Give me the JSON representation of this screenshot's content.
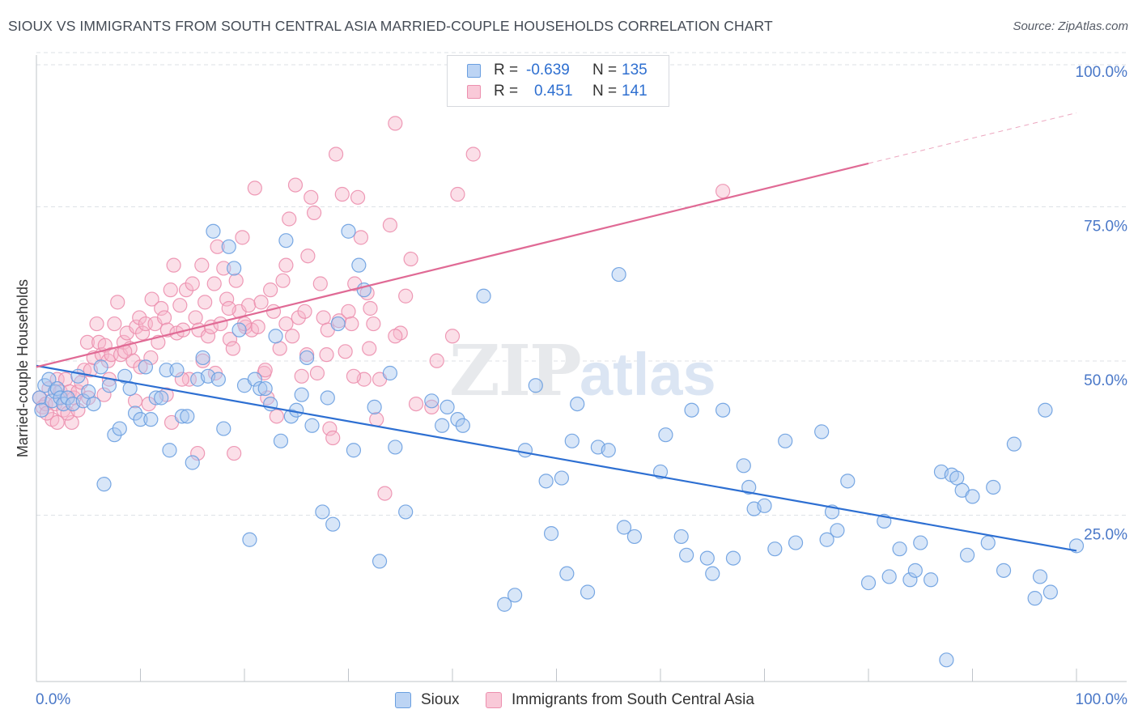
{
  "title": "SIOUX VS IMMIGRANTS FROM SOUTH CENTRAL ASIA MARRIED-COUPLE HOUSEHOLDS CORRELATION CHART",
  "source": "Source: ZipAtlas.com",
  "watermark": {
    "zip": "ZIP",
    "atlas": "atlas"
  },
  "legend": {
    "rows": [
      {
        "r_label": "R =",
        "r_value": "-0.639",
        "n_label": "N =",
        "n_value": "135"
      },
      {
        "r_label": "R =",
        "r_value": "0.451",
        "n_label": "N =",
        "n_value": "141"
      }
    ]
  },
  "bottom_legend": [
    "Sioux",
    "Immigrants from South Central Asia"
  ],
  "colors": {
    "blue_fill": "#a8c8f0",
    "blue_stroke": "#6a9fe0",
    "blue_line": "#2d6fd2",
    "pink_fill": "#f6b8cc",
    "pink_stroke": "#ec8fae",
    "pink_line": "#e06a95",
    "axis_text": "#4a78c8",
    "grid": "#dde1e6"
  },
  "chart_data": {
    "type": "scatter",
    "title": "SIOUX VS IMMIGRANTS FROM SOUTH CENTRAL ASIA MARRIED-COUPLE HOUSEHOLDS CORRELATION CHART",
    "xlabel": "",
    "ylabel": "Married-couple Households",
    "xlim": [
      0,
      100
    ],
    "ylim": [
      0,
      100
    ],
    "x_tick_labels": [
      "0.0%",
      "100.0%"
    ],
    "y_tick_labels": [
      "25.0%",
      "50.0%",
      "75.0%",
      "100.0%"
    ],
    "y_ticks": [
      25,
      50,
      75,
      100
    ],
    "grid": true,
    "legend_position": "top-center",
    "series": [
      {
        "name": "Sioux",
        "r": -0.639,
        "n": 135,
        "trend": {
          "x": [
            0,
            100
          ],
          "y": [
            51.2,
            21.2
          ],
          "style": "solid"
        },
        "points": [
          [
            0.3,
            46
          ],
          [
            0.5,
            44
          ],
          [
            0.8,
            48
          ],
          [
            1.2,
            49
          ],
          [
            1.5,
            45.5
          ],
          [
            1.8,
            47
          ],
          [
            2.0,
            47.5
          ],
          [
            2.3,
            46
          ],
          [
            2.6,
            45
          ],
          [
            3.0,
            46
          ],
          [
            3.5,
            45
          ],
          [
            4.0,
            49.5
          ],
          [
            4.5,
            45.5
          ],
          [
            5.0,
            47
          ],
          [
            5.5,
            45
          ],
          [
            6.2,
            51
          ],
          [
            6.5,
            32
          ],
          [
            7.0,
            48
          ],
          [
            7.5,
            40
          ],
          [
            8.0,
            41
          ],
          [
            8.5,
            49.5
          ],
          [
            9.0,
            47.5
          ],
          [
            9.5,
            43.5
          ],
          [
            10.0,
            42.5
          ],
          [
            10.5,
            51
          ],
          [
            11.0,
            42.5
          ],
          [
            11.5,
            46
          ],
          [
            12.0,
            46
          ],
          [
            12.5,
            50.5
          ],
          [
            12.8,
            37.5
          ],
          [
            13.5,
            50.5
          ],
          [
            14.0,
            43
          ],
          [
            14.5,
            43
          ],
          [
            15.0,
            35.5
          ],
          [
            15.5,
            49
          ],
          [
            16.0,
            52.5
          ],
          [
            16.5,
            49.5
          ],
          [
            17.0,
            73
          ],
          [
            17.5,
            49
          ],
          [
            18.0,
            41
          ],
          [
            18.5,
            70.5
          ],
          [
            19.0,
            67
          ],
          [
            19.5,
            57
          ],
          [
            20.0,
            48
          ],
          [
            20.5,
            23
          ],
          [
            21.0,
            49
          ],
          [
            21.5,
            47.5
          ],
          [
            22.0,
            47.5
          ],
          [
            22.5,
            45
          ],
          [
            23.0,
            56
          ],
          [
            23.5,
            39
          ],
          [
            24.0,
            71.5
          ],
          [
            24.5,
            43
          ],
          [
            25.0,
            44
          ],
          [
            25.5,
            46.5
          ],
          [
            26.0,
            52.5
          ],
          [
            26.5,
            41.5
          ],
          [
            27.5,
            27.5
          ],
          [
            28.0,
            46
          ],
          [
            28.5,
            25.5
          ],
          [
            29.0,
            58
          ],
          [
            30.0,
            73
          ],
          [
            30.5,
            37.5
          ],
          [
            31.0,
            67.5
          ],
          [
            31.5,
            63.5
          ],
          [
            32.5,
            44.5
          ],
          [
            33.0,
            19.5
          ],
          [
            34.0,
            50
          ],
          [
            34.5,
            38
          ],
          [
            35.5,
            27.5
          ],
          [
            38.0,
            45.5
          ],
          [
            39.0,
            41.5
          ],
          [
            39.5,
            44.5
          ],
          [
            40.5,
            42.5
          ],
          [
            41.0,
            41.5
          ],
          [
            43.0,
            62.5
          ],
          [
            45.0,
            12.5
          ],
          [
            46.0,
            14
          ],
          [
            47.0,
            37.5
          ],
          [
            48.0,
            48
          ],
          [
            49.0,
            32.5
          ],
          [
            49.5,
            24
          ],
          [
            50.5,
            33
          ],
          [
            51.0,
            17.5
          ],
          [
            51.5,
            39
          ],
          [
            52.0,
            45
          ],
          [
            53.0,
            14.5
          ],
          [
            54.0,
            38
          ],
          [
            55.0,
            37.5
          ],
          [
            56.0,
            66
          ],
          [
            56.5,
            25
          ],
          [
            57.5,
            23.5
          ],
          [
            60.0,
            34
          ],
          [
            60.5,
            40
          ],
          [
            62.0,
            23.5
          ],
          [
            62.5,
            20.5
          ],
          [
            63.0,
            44
          ],
          [
            64.5,
            20
          ],
          [
            65.0,
            17.5
          ],
          [
            66.0,
            44
          ],
          [
            67.0,
            20
          ],
          [
            68.0,
            35
          ],
          [
            68.5,
            31.5
          ],
          [
            69.0,
            28
          ],
          [
            70.0,
            28.5
          ],
          [
            71.0,
            21.5
          ],
          [
            72.0,
            39
          ],
          [
            73.0,
            22.5
          ],
          [
            75.5,
            40.5
          ],
          [
            76.0,
            23
          ],
          [
            76.5,
            27.5
          ],
          [
            77.0,
            24.5
          ],
          [
            78.0,
            32.5
          ],
          [
            80.0,
            16
          ],
          [
            81.5,
            26
          ],
          [
            82.0,
            17
          ],
          [
            83.0,
            21.5
          ],
          [
            84.0,
            16.5
          ],
          [
            84.5,
            18
          ],
          [
            85.0,
            22.5
          ],
          [
            86.0,
            16.5
          ],
          [
            87.0,
            34
          ],
          [
            87.5,
            3.5
          ],
          [
            88.0,
            33.5
          ],
          [
            88.5,
            33
          ],
          [
            89.0,
            31
          ],
          [
            89.5,
            20.5
          ],
          [
            90.0,
            30
          ],
          [
            91.5,
            22.5
          ],
          [
            92.0,
            31.5
          ],
          [
            93.0,
            18
          ],
          [
            94.0,
            38.5
          ],
          [
            96.0,
            13.5
          ],
          [
            96.5,
            17
          ],
          [
            97.0,
            44
          ],
          [
            97.5,
            14.5
          ],
          [
            100.0,
            22
          ]
        ]
      },
      {
        "name": "Immigrants from South Central Asia",
        "r": 0.451,
        "n": 141,
        "trend": {
          "x": [
            0,
            80
          ],
          "y": [
            51.0,
            84.0
          ],
          "style": "solid",
          "extension": {
            "x": [
              80,
              100
            ],
            "y": [
              84.0,
              92.2
            ],
            "style": "dashed"
          }
        },
        "points": [
          [
            0.3,
            46
          ],
          [
            0.6,
            44.5
          ],
          [
            0.9,
            45
          ],
          [
            1.2,
            47.5
          ],
          [
            1.5,
            42.5
          ],
          [
            1.8,
            45
          ],
          [
            2.0,
            49
          ],
          [
            2.3,
            47
          ],
          [
            2.6,
            44
          ],
          [
            2.8,
            49
          ],
          [
            3.2,
            47
          ],
          [
            3.4,
            42
          ],
          [
            3.6,
            46
          ],
          [
            4.0,
            47
          ],
          [
            4.3,
            48.5
          ],
          [
            4.6,
            50.5
          ],
          [
            4.9,
            55
          ],
          [
            5.2,
            50.5
          ],
          [
            5.5,
            52.5
          ],
          [
            5.8,
            58
          ],
          [
            6.0,
            55
          ],
          [
            6.3,
            53
          ],
          [
            6.6,
            54.5
          ],
          [
            6.9,
            52
          ],
          [
            7.2,
            53
          ],
          [
            7.5,
            58
          ],
          [
            7.8,
            61.5
          ],
          [
            8.1,
            53
          ],
          [
            8.4,
            55
          ],
          [
            8.7,
            56.5
          ],
          [
            9.0,
            54
          ],
          [
            9.3,
            52
          ],
          [
            9.6,
            57.5
          ],
          [
            9.9,
            59
          ],
          [
            10.2,
            56.5
          ],
          [
            10.5,
            58
          ],
          [
            10.8,
            45
          ],
          [
            11.1,
            62
          ],
          [
            11.4,
            58
          ],
          [
            11.7,
            55
          ],
          [
            12.0,
            60.5
          ],
          [
            12.3,
            59
          ],
          [
            12.6,
            57
          ],
          [
            12.9,
            63.5
          ],
          [
            13.2,
            67.5
          ],
          [
            13.5,
            56.5
          ],
          [
            13.8,
            61
          ],
          [
            14.1,
            57
          ],
          [
            14.4,
            63.5
          ],
          [
            14.7,
            49
          ],
          [
            15.0,
            64.5
          ],
          [
            15.3,
            59
          ],
          [
            15.6,
            57
          ],
          [
            15.9,
            67.5
          ],
          [
            16.2,
            61.5
          ],
          [
            16.5,
            56
          ],
          [
            16.8,
            57.5
          ],
          [
            17.1,
            64.5
          ],
          [
            17.4,
            70.5
          ],
          [
            17.7,
            58
          ],
          [
            18.0,
            67
          ],
          [
            18.3,
            62
          ],
          [
            18.6,
            55.5
          ],
          [
            18.9,
            54
          ],
          [
            19.2,
            65
          ],
          [
            19.5,
            60
          ],
          [
            19.8,
            72
          ],
          [
            20.1,
            57.5
          ],
          [
            20.4,
            61
          ],
          [
            20.7,
            57
          ],
          [
            21.0,
            80
          ],
          [
            21.3,
            57.5
          ],
          [
            21.6,
            61.5
          ],
          [
            21.9,
            50
          ],
          [
            22.2,
            46
          ],
          [
            22.5,
            63.5
          ],
          [
            22.8,
            60
          ],
          [
            23.1,
            43
          ],
          [
            23.4,
            54
          ],
          [
            23.7,
            65
          ],
          [
            24.0,
            67.5
          ],
          [
            24.3,
            75
          ],
          [
            24.6,
            56
          ],
          [
            24.9,
            80.5
          ],
          [
            25.2,
            59
          ],
          [
            25.5,
            49.5
          ],
          [
            25.8,
            60
          ],
          [
            26.1,
            69
          ],
          [
            26.4,
            78.5
          ],
          [
            26.7,
            76
          ],
          [
            27.0,
            50
          ],
          [
            27.3,
            64.5
          ],
          [
            27.6,
            59
          ],
          [
            27.9,
            53
          ],
          [
            28.2,
            41
          ],
          [
            28.5,
            39.5
          ],
          [
            28.8,
            85.5
          ],
          [
            29.1,
            58.5
          ],
          [
            29.4,
            79
          ],
          [
            29.7,
            53.5
          ],
          [
            30.0,
            60
          ],
          [
            30.3,
            58
          ],
          [
            30.6,
            64.5
          ],
          [
            30.9,
            78.5
          ],
          [
            31.2,
            72
          ],
          [
            31.5,
            49
          ],
          [
            31.8,
            63
          ],
          [
            32.1,
            60.5
          ],
          [
            32.4,
            58
          ],
          [
            32.7,
            42.5
          ],
          [
            33.0,
            49
          ],
          [
            33.5,
            30.5
          ],
          [
            34.0,
            74
          ],
          [
            34.5,
            90.5
          ],
          [
            35.0,
            56.5
          ],
          [
            35.5,
            62.5
          ],
          [
            36.0,
            68.5
          ],
          [
            38.0,
            44.5
          ],
          [
            40.5,
            79
          ],
          [
            42.0,
            85.5
          ],
          [
            19.0,
            37
          ],
          [
            20.0,
            58
          ],
          [
            13.0,
            42
          ],
          [
            15.5,
            37
          ],
          [
            17.2,
            50
          ],
          [
            6.5,
            46.5
          ],
          [
            7.0,
            49
          ],
          [
            10.0,
            51
          ],
          [
            11.0,
            52.5
          ],
          [
            8.5,
            53.5
          ],
          [
            9.5,
            45.5
          ],
          [
            12.5,
            46.5
          ],
          [
            14.0,
            49
          ],
          [
            16.0,
            52
          ],
          [
            18.5,
            60.5
          ],
          [
            22.0,
            50.5
          ],
          [
            24.0,
            58
          ],
          [
            26.0,
            53
          ],
          [
            28.0,
            57
          ],
          [
            30.5,
            49.5
          ],
          [
            32.0,
            54
          ],
          [
            34.5,
            56
          ],
          [
            36.5,
            45
          ],
          [
            38.5,
            52
          ],
          [
            40.0,
            56
          ],
          [
            66.0,
            79.5
          ],
          [
            3.0,
            43.5
          ],
          [
            5.0,
            46
          ],
          [
            4.0,
            44
          ],
          [
            2.0,
            42
          ],
          [
            1.0,
            43.5
          ]
        ]
      }
    ]
  }
}
